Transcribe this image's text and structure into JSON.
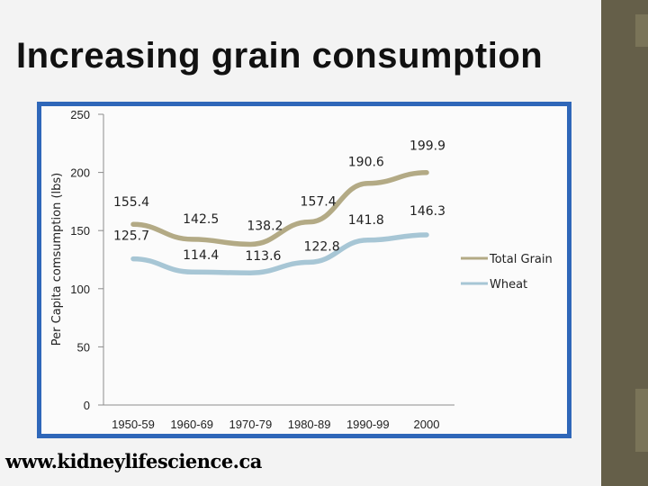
{
  "slide": {
    "title": "Increasing grain consumption",
    "watermark": "www.kidneylifescience.ca"
  },
  "colors": {
    "total_grain": "#b3aa85",
    "wheat": "#a7c6d5",
    "frame": "#2f67b9",
    "sidebar": "#655f49"
  },
  "chart_data": {
    "type": "line",
    "title": "",
    "xlabel": "",
    "ylabel": "Per Capita comsumption (lbs)",
    "categories": [
      "1950-59",
      "1960-69",
      "1970-79",
      "1980-89",
      "1990-99",
      "2000"
    ],
    "ylim": [
      0,
      250
    ],
    "yticks": [
      0,
      50,
      100,
      150,
      200,
      250
    ],
    "legend_position": "right",
    "series": [
      {
        "name": "Total Grain",
        "values": [
          155.4,
          142.5,
          138.2,
          157.4,
          190.6,
          199.9
        ]
      },
      {
        "name": "Wheat",
        "values": [
          125.7,
          114.4,
          113.6,
          122.8,
          141.8,
          146.3
        ]
      }
    ]
  }
}
